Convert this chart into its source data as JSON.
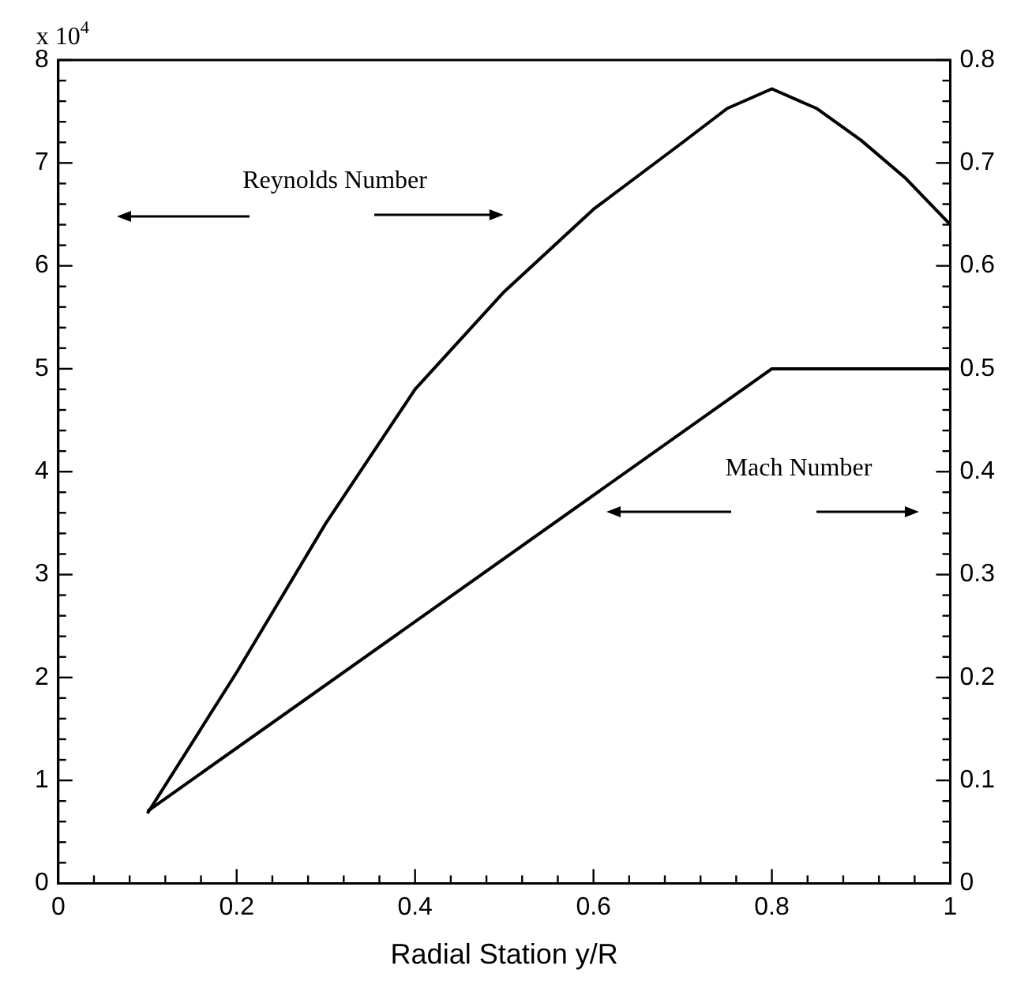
{
  "chart_data": {
    "type": "line",
    "xlabel": "Radial Station y/R",
    "annotations": [
      "x 10$^{4}$",
      "Reynolds Number",
      "Mach Number"
    ],
    "series": [
      {
        "color": "#000000",
        "x": [
          0.1,
          0.2,
          0.3,
          0.4,
          0.5,
          0.6,
          0.7,
          0.75,
          0.8,
          0.85,
          0.9,
          0.95,
          1.0
        ],
        "values": [
          0.68,
          2.05,
          3.5,
          4.8,
          5.75,
          6.55,
          7.2,
          7.53,
          7.72,
          7.53,
          7.22,
          6.85,
          6.4
        ]
      },
      {
        "color": "#000000",
        "axis": "y2",
        "x": [
          0.1,
          0.8,
          1.0
        ],
        "values": [
          0.07,
          0.5,
          0.5
        ]
      }
    ],
    "xlim": [
      0,
      1
    ],
    "xticks": [
      0,
      {
        "value": 0.04,
        "label": null
      },
      {
        "value": 0.08,
        "label": null
      },
      {
        "value": 0.12,
        "label": null
      },
      {
        "value": 0.16,
        "label": null
      },
      0.2,
      {
        "value": 0.24,
        "label": null
      },
      {
        "value": 0.28,
        "label": null
      },
      {
        "value": 0.32,
        "label": null
      },
      {
        "value": 0.36,
        "label": null
      },
      0.4,
      {
        "value": 0.44,
        "label": null
      },
      {
        "value": 0.48,
        "label": null
      },
      {
        "value": 0.52,
        "label": null
      },
      {
        "value": 0.56,
        "label": null
      },
      0.6,
      {
        "value": 0.64,
        "label": null
      },
      {
        "value": 0.68,
        "label": null
      },
      {
        "value": 0.72,
        "label": null
      },
      {
        "value": 0.76,
        "label": null
      },
      0.8,
      {
        "value": 0.84,
        "label": null
      },
      {
        "value": 0.88,
        "label": null
      },
      {
        "value": 0.92,
        "label": null
      },
      {
        "value": 0.96,
        "label": null
      },
      1
    ],
    "ylim": [
      0,
      8
    ],
    "yticks": [
      0,
      {
        "value": 0.2,
        "label": null
      },
      {
        "value": 0.4,
        "label": null
      },
      {
        "value": 0.6,
        "label": null
      },
      {
        "value": 0.8,
        "label": null
      },
      1,
      {
        "value": 1.2,
        "label": null
      },
      {
        "value": 1.4,
        "label": null
      },
      {
        "value": 1.6,
        "label": null
      },
      {
        "value": 1.8,
        "label": null
      },
      2,
      {
        "value": 2.2,
        "label": null
      },
      {
        "value": 2.4,
        "label": null
      },
      {
        "value": 2.6,
        "label": null
      },
      {
        "value": 2.8,
        "label": null
      },
      3,
      {
        "value": 3.2,
        "label": null
      },
      {
        "value": 3.4,
        "label": null
      },
      {
        "value": 3.6,
        "label": null
      },
      {
        "value": 3.8,
        "label": null
      },
      4,
      {
        "value": 4.2,
        "label": null
      },
      {
        "value": 4.4,
        "label": null
      },
      {
        "value": 4.6,
        "label": null
      },
      {
        "value": 4.8,
        "label": null
      },
      5,
      {
        "value": 5.2,
        "label": null
      },
      {
        "value": 5.4,
        "label": null
      },
      {
        "value": 5.6,
        "label": null
      },
      {
        "value": 5.8,
        "label": null
      },
      6,
      {
        "value": 6.2,
        "label": null
      },
      {
        "value": 6.4,
        "label": null
      },
      {
        "value": 6.6,
        "label": null
      },
      {
        "value": 6.8,
        "label": null
      },
      7,
      {
        "value": 7.2,
        "label": null
      },
      {
        "value": 7.4,
        "label": null
      },
      {
        "value": 7.6,
        "label": null
      },
      {
        "value": 7.8,
        "label": null
      },
      8
    ],
    "y2lim": [
      0,
      0.8
    ],
    "y2ticks": [
      0,
      {
        "value": 0.02,
        "label": null
      },
      {
        "value": 0.04,
        "label": null
      },
      {
        "value": 0.06,
        "label": null
      },
      {
        "value": 0.08,
        "label": null
      },
      0.1,
      {
        "value": 0.12,
        "label": null
      },
      {
        "value": 0.14,
        "label": null
      },
      {
        "value": 0.16,
        "label": null
      },
      {
        "value": 0.18,
        "label": null
      },
      0.2,
      {
        "value": 0.22,
        "label": null
      },
      {
        "value": 0.24,
        "label": null
      },
      {
        "value": 0.26,
        "label": null
      },
      {
        "value": 0.28,
        "label": null
      },
      0.3,
      {
        "value": 0.32,
        "label": null
      },
      {
        "value": 0.34,
        "label": null
      },
      {
        "value": 0.36,
        "label": null
      },
      {
        "value": 0.38,
        "label": null
      },
      0.4,
      {
        "value": 0.42,
        "label": null
      },
      {
        "value": 0.44,
        "label": null
      },
      {
        "value": 0.46,
        "label": null
      },
      {
        "value": 0.48,
        "label": null
      },
      0.5,
      {
        "value": 0.52,
        "label": null
      },
      {
        "value": 0.54,
        "label": null
      },
      {
        "value": 0.56,
        "label": null
      },
      {
        "value": 0.58,
        "label": null
      },
      0.6,
      {
        "value": 0.62,
        "label": null
      },
      {
        "value": 0.64,
        "label": null
      },
      {
        "value": 0.66,
        "label": null
      },
      {
        "value": 0.68,
        "label": null
      },
      0.7,
      {
        "value": 0.72,
        "label": null
      },
      {
        "value": 0.74,
        "label": null
      },
      {
        "value": 0.76,
        "label": null
      },
      {
        "value": 0.78,
        "label": null
      },
      0.8
    ],
    "marker": "none",
    "line_style": "solid",
    "grid": false,
    "legend": false
  }
}
